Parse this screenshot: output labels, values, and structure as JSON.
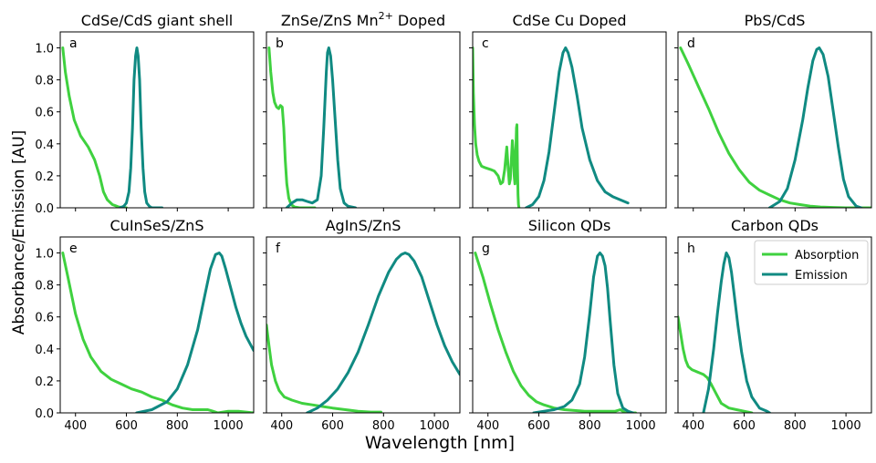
{
  "figure": {
    "xlabel": "Wavelength [nm]",
    "ylabel": "Absorbance/Emission [AU]"
  },
  "colors": {
    "absorption": "#3fd13f",
    "emission": "#108a82"
  },
  "chart_data": [
    {
      "type": "line",
      "letter": "a",
      "title": "CdSe/CdS giant shell",
      "xlim": [
        340,
        1100
      ],
      "ylim": [
        0,
        1.1
      ],
      "xticks": [
        400,
        600,
        800,
        1000
      ],
      "yticks": [
        0.0,
        0.2,
        0.4,
        0.6,
        0.8,
        1.0
      ],
      "series": [
        {
          "name": "Absorption",
          "x": [
            350,
            360,
            375,
            395,
            420,
            450,
            475,
            495,
            510,
            525,
            545,
            570,
            600
          ],
          "y": [
            1.0,
            0.85,
            0.7,
            0.55,
            0.45,
            0.38,
            0.3,
            0.2,
            0.1,
            0.05,
            0.02,
            0.005,
            0.0
          ]
        },
        {
          "name": "Emission",
          "x": [
            575,
            590,
            600,
            610,
            617,
            624,
            630,
            636,
            641,
            646,
            652,
            658,
            665,
            672,
            680,
            690,
            700,
            720,
            740
          ],
          "y": [
            0.0,
            0.01,
            0.03,
            0.1,
            0.25,
            0.5,
            0.8,
            0.95,
            1.0,
            0.95,
            0.8,
            0.5,
            0.25,
            0.1,
            0.03,
            0.01,
            0.0,
            0.0,
            0.0
          ]
        }
      ]
    },
    {
      "type": "line",
      "letter": "b",
      "title": "ZnSe/ZnS Mn",
      "title_sup": "2+",
      "title_suffix": "Doped",
      "xlim": [
        340,
        1100
      ],
      "ylim": [
        0,
        1.1
      ],
      "xticks": [
        400,
        600,
        800,
        1000
      ],
      "yticks": [
        0.0,
        0.2,
        0.4,
        0.6,
        0.8,
        1.0
      ],
      "series": [
        {
          "name": "Absorption",
          "x": [
            350,
            357,
            365,
            372,
            380,
            388,
            395,
            402,
            408,
            414,
            420,
            428,
            437,
            450,
            470,
            500,
            530
          ],
          "y": [
            1.0,
            0.85,
            0.72,
            0.66,
            0.63,
            0.62,
            0.64,
            0.63,
            0.5,
            0.3,
            0.15,
            0.06,
            0.02,
            0.005,
            0.0,
            0.0,
            0.0
          ]
        },
        {
          "name": "Emission",
          "x": [
            420,
            440,
            460,
            480,
            500,
            520,
            540,
            555,
            565,
            575,
            580,
            585,
            592,
            600,
            610,
            620,
            630,
            645,
            660,
            690
          ],
          "y": [
            0.0,
            0.03,
            0.05,
            0.05,
            0.04,
            0.03,
            0.05,
            0.2,
            0.5,
            0.85,
            0.97,
            1.0,
            0.95,
            0.8,
            0.55,
            0.3,
            0.12,
            0.03,
            0.01,
            0.0
          ]
        }
      ]
    },
    {
      "type": "line",
      "letter": "c",
      "title": "CdSe Cu Doped",
      "xlim": [
        340,
        1100
      ],
      "ylim": [
        0,
        1.1
      ],
      "xticks": [
        400,
        600,
        800,
        1000
      ],
      "yticks": [
        0.0,
        0.2,
        0.4,
        0.6,
        0.8,
        1.0
      ],
      "series": [
        {
          "name": "Absorption",
          "x": [
            340,
            343,
            347,
            352,
            358,
            365,
            375,
            390,
            410,
            425,
            440,
            450,
            458,
            466,
            474,
            480,
            484,
            488,
            492,
            496,
            500,
            503,
            506,
            509,
            512,
            514,
            516,
            518,
            520,
            522
          ],
          "y": [
            1.0,
            0.72,
            0.52,
            0.4,
            0.33,
            0.29,
            0.26,
            0.25,
            0.24,
            0.23,
            0.2,
            0.15,
            0.16,
            0.24,
            0.38,
            0.23,
            0.15,
            0.18,
            0.3,
            0.42,
            0.34,
            0.2,
            0.15,
            0.3,
            0.5,
            0.52,
            0.25,
            0.08,
            0.02,
            0.0
          ]
        },
        {
          "name": "Emission",
          "x": [
            550,
            575,
            600,
            620,
            640,
            660,
            680,
            695,
            705,
            715,
            730,
            750,
            770,
            800,
            830,
            860,
            890,
            920,
            950
          ],
          "y": [
            0.0,
            0.02,
            0.07,
            0.17,
            0.35,
            0.6,
            0.85,
            0.97,
            1.0,
            0.97,
            0.88,
            0.7,
            0.5,
            0.3,
            0.17,
            0.1,
            0.07,
            0.05,
            0.03
          ]
        }
      ]
    },
    {
      "type": "line",
      "letter": "d",
      "title": "PbS/CdS",
      "xlim": [
        340,
        1100
      ],
      "ylim": [
        0,
        1.1
      ],
      "xticks": [
        400,
        600,
        800,
        1000
      ],
      "yticks": [
        0.0,
        0.2,
        0.4,
        0.6,
        0.8,
        1.0
      ],
      "series": [
        {
          "name": "Absorption",
          "x": [
            350,
            380,
            420,
            460,
            500,
            540,
            580,
            620,
            660,
            700,
            740,
            780,
            820,
            860,
            900,
            950,
            1000,
            1050,
            1100
          ],
          "y": [
            1.0,
            0.9,
            0.76,
            0.62,
            0.47,
            0.34,
            0.24,
            0.16,
            0.11,
            0.08,
            0.05,
            0.03,
            0.02,
            0.01,
            0.005,
            0.002,
            0.0,
            0.0,
            0.0
          ]
        },
        {
          "name": "Emission",
          "x": [
            700,
            740,
            770,
            800,
            830,
            850,
            870,
            885,
            895,
            910,
            930,
            950,
            970,
            990,
            1010,
            1040,
            1060
          ],
          "y": [
            0.0,
            0.04,
            0.12,
            0.3,
            0.55,
            0.75,
            0.92,
            0.99,
            1.0,
            0.96,
            0.82,
            0.6,
            0.38,
            0.18,
            0.07,
            0.01,
            0.0
          ]
        }
      ]
    },
    {
      "type": "line",
      "letter": "e",
      "title": "CuInSeS/ZnS",
      "xlim": [
        340,
        1100
      ],
      "ylim": [
        0,
        1.1
      ],
      "xticks": [
        400,
        600,
        800,
        1000
      ],
      "yticks": [
        0.0,
        0.2,
        0.4,
        0.6,
        0.8,
        1.0
      ],
      "series": [
        {
          "name": "Absorption",
          "x": [
            350,
            370,
            400,
            430,
            460,
            500,
            540,
            580,
            620,
            660,
            700,
            740,
            780,
            820,
            860,
            900,
            920,
            940,
            960,
            980,
            1000,
            1040,
            1100
          ],
          "y": [
            1.0,
            0.85,
            0.62,
            0.46,
            0.35,
            0.26,
            0.21,
            0.18,
            0.15,
            0.13,
            0.1,
            0.08,
            0.05,
            0.03,
            0.02,
            0.02,
            0.02,
            0.01,
            0.0,
            0.005,
            0.01,
            0.01,
            0.0
          ]
        },
        {
          "name": "Emission",
          "x": [
            640,
            700,
            760,
            800,
            840,
            880,
            910,
            930,
            950,
            965,
            975,
            990,
            1010,
            1030,
            1050,
            1070,
            1090,
            1100
          ],
          "y": [
            0.0,
            0.02,
            0.07,
            0.15,
            0.3,
            0.52,
            0.75,
            0.9,
            0.99,
            1.0,
            0.98,
            0.9,
            0.78,
            0.66,
            0.56,
            0.48,
            0.42,
            0.39
          ]
        }
      ]
    },
    {
      "type": "line",
      "letter": "f",
      "title": "AgInS/ZnS",
      "xlim": [
        340,
        1100
      ],
      "ylim": [
        0,
        1.1
      ],
      "xticks": [
        400,
        600,
        800,
        1000
      ],
      "yticks": [
        0.0,
        0.2,
        0.4,
        0.6,
        0.8,
        1.0
      ],
      "series": [
        {
          "name": "Absorption",
          "x": [
            340,
            350,
            360,
            375,
            390,
            410,
            440,
            480,
            520,
            560,
            600,
            650,
            700,
            750,
            790
          ],
          "y": [
            0.55,
            0.42,
            0.3,
            0.2,
            0.14,
            0.1,
            0.08,
            0.06,
            0.05,
            0.04,
            0.03,
            0.02,
            0.01,
            0.005,
            0.005
          ]
        },
        {
          "name": "Emission",
          "x": [
            500,
            540,
            580,
            620,
            660,
            700,
            740,
            780,
            820,
            850,
            870,
            885,
            900,
            920,
            950,
            980,
            1010,
            1040,
            1070,
            1100
          ],
          "y": [
            0.0,
            0.03,
            0.08,
            0.15,
            0.25,
            0.38,
            0.55,
            0.73,
            0.88,
            0.96,
            0.99,
            1.0,
            0.99,
            0.95,
            0.85,
            0.7,
            0.55,
            0.42,
            0.32,
            0.24
          ]
        }
      ]
    },
    {
      "type": "line",
      "letter": "g",
      "title": "Silicon QDs",
      "xlim": [
        340,
        1100
      ],
      "ylim": [
        0,
        1.1
      ],
      "xticks": [
        400,
        600,
        800,
        1000
      ],
      "yticks": [
        0.0,
        0.2,
        0.4,
        0.6,
        0.8,
        1.0
      ],
      "series": [
        {
          "name": "Absorption",
          "x": [
            350,
            380,
            410,
            440,
            470,
            500,
            530,
            560,
            590,
            620,
            660,
            700,
            740,
            780,
            820,
            860,
            900,
            920,
            940,
            960,
            980
          ],
          "y": [
            1.0,
            0.85,
            0.68,
            0.52,
            0.38,
            0.26,
            0.17,
            0.11,
            0.07,
            0.05,
            0.03,
            0.02,
            0.015,
            0.01,
            0.01,
            0.01,
            0.01,
            0.02,
            0.0,
            0.0,
            0.0
          ]
        },
        {
          "name": "Emission",
          "x": [
            580,
            620,
            660,
            700,
            730,
            760,
            780,
            800,
            815,
            830,
            840,
            850,
            860,
            870,
            880,
            895,
            910,
            930,
            950,
            970
          ],
          "y": [
            0.0,
            0.01,
            0.02,
            0.04,
            0.08,
            0.18,
            0.35,
            0.62,
            0.85,
            0.98,
            1.0,
            0.98,
            0.92,
            0.78,
            0.58,
            0.3,
            0.12,
            0.03,
            0.01,
            0.0
          ]
        }
      ]
    },
    {
      "type": "line",
      "letter": "h",
      "title": "Carbon QDs",
      "xlim": [
        340,
        1100
      ],
      "ylim": [
        0,
        1.1
      ],
      "xticks": [
        400,
        600,
        800,
        1000
      ],
      "yticks": [
        0.0,
        0.2,
        0.4,
        0.6,
        0.8,
        1.0
      ],
      "legend": {
        "position": "top-right",
        "entries": [
          "Absorption",
          "Emission"
        ]
      },
      "series": [
        {
          "name": "Absorption",
          "x": [
            340,
            350,
            360,
            370,
            380,
            395,
            410,
            425,
            440,
            455,
            470,
            490,
            510,
            540,
            570,
            600,
            630
          ],
          "y": [
            0.6,
            0.5,
            0.4,
            0.33,
            0.29,
            0.27,
            0.26,
            0.25,
            0.24,
            0.22,
            0.18,
            0.12,
            0.06,
            0.03,
            0.02,
            0.01,
            0.0
          ]
        },
        {
          "name": "Emission",
          "x": [
            440,
            460,
            480,
            495,
            510,
            520,
            530,
            540,
            550,
            560,
            575,
            590,
            610,
            630,
            660,
            690,
            700
          ],
          "y": [
            0.0,
            0.15,
            0.4,
            0.62,
            0.82,
            0.93,
            1.0,
            0.97,
            0.88,
            0.75,
            0.55,
            0.38,
            0.2,
            0.1,
            0.03,
            0.01,
            0.0
          ]
        }
      ]
    }
  ]
}
